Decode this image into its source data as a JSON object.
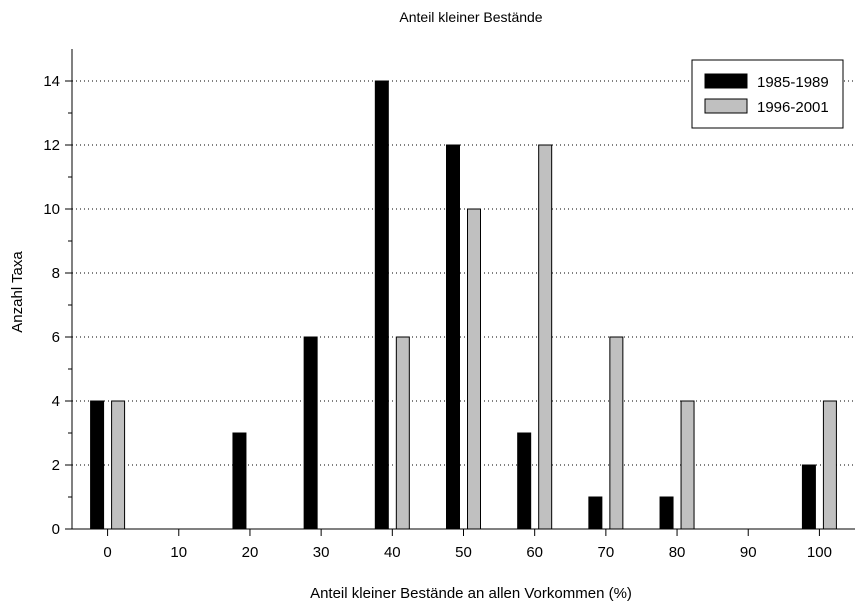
{
  "chart_data": {
    "type": "bar",
    "title": "Anteil kleiner Bestände",
    "xlabel": "Anteil kleiner Bestände an allen Vorkommen (%)",
    "ylabel": "Anzahl Taxa",
    "categories": [
      "0",
      "10",
      "20",
      "30",
      "40",
      "50",
      "60",
      "70",
      "80",
      "90",
      "100"
    ],
    "series": [
      {
        "name": "1985-1989",
        "color": "#000000",
        "values": [
          4,
          0,
          3,
          6,
          14,
          12,
          3,
          1,
          1,
          0,
          2
        ]
      },
      {
        "name": "1996-2001",
        "color": "#c0c0c0",
        "values": [
          4,
          0,
          0,
          0,
          6,
          10,
          12,
          6,
          4,
          0,
          4
        ]
      }
    ],
    "ylim": [
      0,
      15
    ],
    "yticks": [
      0,
      2,
      4,
      6,
      8,
      10,
      12,
      14
    ],
    "grid": "horizontal dotted",
    "legend_position": "top-right"
  }
}
